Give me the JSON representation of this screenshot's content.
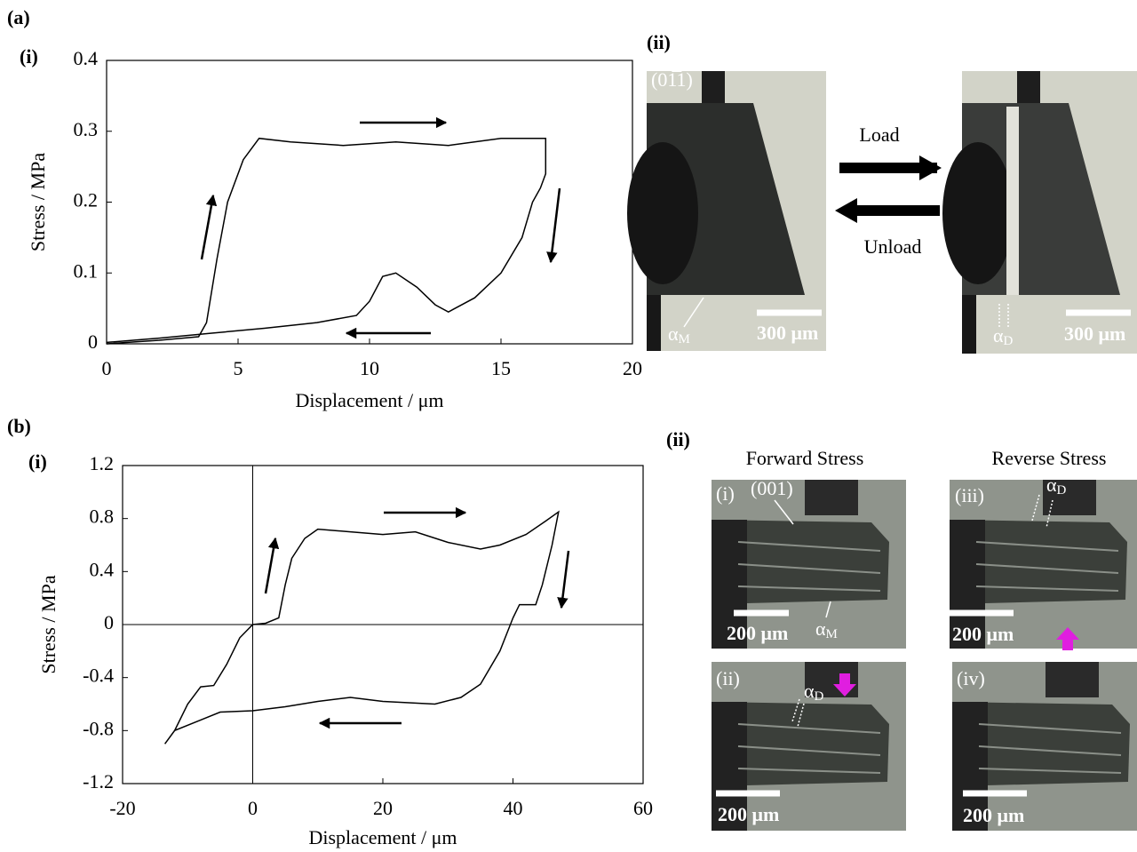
{
  "chart_data": [
    {
      "type": "line",
      "xlabel": "Displacement / μm",
      "ylabel": "Stress / MPa",
      "xlim": [
        0,
        20
      ],
      "xticks": [
        0,
        5,
        10,
        15,
        20
      ],
      "ylim": [
        0,
        0.4
      ],
      "yticks": [
        0,
        0.1,
        0.2,
        0.3,
        0.4
      ],
      "series": [
        {
          "color": "#000000",
          "x": [
            0,
            2,
            3.5,
            3.8,
            4.2,
            4.6,
            5.2,
            5.8,
            7,
            9,
            11,
            13,
            15,
            16.7,
            16.7,
            16.5,
            16.2,
            15.8,
            15,
            14,
            13,
            12.5,
            11.8,
            11,
            10.5,
            10,
            9.5,
            8,
            6,
            4,
            2,
            0
          ],
          "values": [
            0,
            0.005,
            0.01,
            0.03,
            0.12,
            0.2,
            0.26,
            0.29,
            0.285,
            0.28,
            0.285,
            0.28,
            0.29,
            0.29,
            0.24,
            0.22,
            0.2,
            0.15,
            0.1,
            0.065,
            0.045,
            0.055,
            0.08,
            0.1,
            0.095,
            0.06,
            0.04,
            0.03,
            0.022,
            0.015,
            0.008,
            0.002
          ]
        }
      ]
    },
    {
      "type": "line",
      "xlabel": "Displacement / μm",
      "ylabel": "Stress / MPa",
      "xlim": [
        -20,
        60
      ],
      "xticks": [
        -20,
        0,
        20,
        40,
        60
      ],
      "ylim": [
        -1.2,
        1.2
      ],
      "yticks": [
        -1.2,
        -0.8,
        -0.4,
        0,
        0.4,
        0.8,
        1.2
      ],
      "zero_lines": true,
      "series": [
        {
          "color": "#000000",
          "x": [
            -13.5,
            -12,
            -10,
            -8,
            -6,
            -4,
            -2,
            0,
            2,
            4,
            5,
            6,
            8,
            10,
            15,
            20,
            25,
            30,
            35,
            38,
            42,
            45,
            47,
            46,
            44.5,
            43.5,
            41,
            40,
            38,
            35,
            32,
            28,
            20,
            15,
            10,
            5,
            0,
            -5,
            -8,
            -12,
            -13.5
          ],
          "values": [
            -0.9,
            -0.8,
            -0.6,
            -0.47,
            -0.46,
            -0.3,
            -0.1,
            0,
            0.01,
            0.05,
            0.3,
            0.5,
            0.65,
            0.72,
            0.7,
            0.68,
            0.7,
            0.62,
            0.57,
            0.6,
            0.68,
            0.78,
            0.85,
            0.6,
            0.3,
            0.15,
            0.15,
            0.05,
            -0.2,
            -0.45,
            -0.55,
            -0.6,
            -0.58,
            -0.55,
            -0.58,
            -0.62,
            -0.65,
            -0.66,
            -0.72,
            -0.8,
            -0.9
          ]
        }
      ]
    }
  ],
  "figure": {
    "a_label": "(a)",
    "a_i": "(i)",
    "a_ii": "(ii)",
    "b_label": "(b)",
    "b_i": "(i)",
    "b_ii": "(ii)",
    "load": "Load",
    "unload": "Unload",
    "forward": "Forward Stress",
    "reverse": "Reverse Stress",
    "photos": [
      {
        "plane": "(01̅1)",
        "alpha": {
          "sym": "α",
          "sub": "M"
        },
        "scale": "300 μm"
      },
      {
        "alpha": {
          "sym": "α",
          "sub": "D"
        },
        "scale": "300 μm"
      },
      {
        "label": "(i)",
        "plane": "(001)",
        "alpha": {
          "sym": "α",
          "sub": "M"
        },
        "scale": "200 μm"
      },
      {
        "label": "(iii)",
        "alpha": {
          "sym": "α",
          "sub": "D"
        },
        "scale": "200 μm"
      },
      {
        "label": "(ii)",
        "alpha": {
          "sym": "α",
          "sub": "D"
        },
        "scale": "200 μm"
      },
      {
        "label": "(iv)",
        "scale": "200 μm"
      }
    ]
  }
}
